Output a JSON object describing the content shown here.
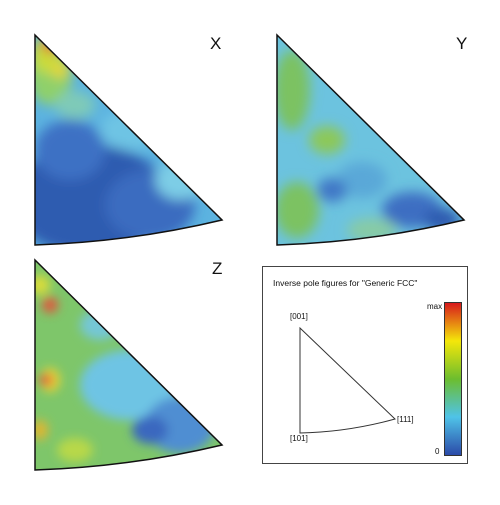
{
  "figures": [
    {
      "id": "x",
      "label": "X"
    },
    {
      "id": "y",
      "label": "Y"
    },
    {
      "id": "z",
      "label": "Z"
    }
  ],
  "legend": {
    "title": "Inverse pole figures for \"Generic FCC\"",
    "poles": {
      "top": "[001]",
      "bottom_left": "[101]",
      "bottom_right": "[111]"
    },
    "colorbar": {
      "max_label": "max",
      "min_label": "0",
      "colors": [
        "#d7191c",
        "#f4e70a",
        "#6cbd2e",
        "#4fc3e8",
        "#2b4aa8"
      ]
    }
  }
}
